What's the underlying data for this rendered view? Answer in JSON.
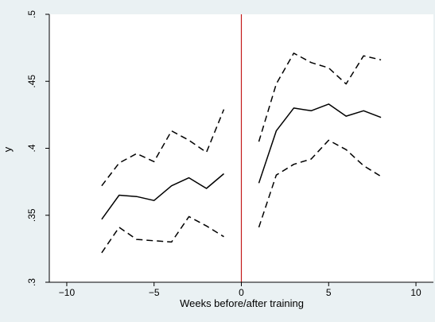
{
  "chart_data": {
    "type": "line",
    "title": "",
    "xlabel": "Weeks before/after training",
    "ylabel": "y",
    "xlim": [
      -11,
      11
    ],
    "ylim": [
      0.3,
      0.5
    ],
    "x_ticks": [
      -10,
      -5,
      0,
      5,
      10
    ],
    "x_tick_labels": [
      "−10",
      "−5",
      "0",
      "5",
      "10"
    ],
    "y_ticks": [
      0.3,
      0.35,
      0.4,
      0.45,
      0.5
    ],
    "y_tick_labels": [
      ".3",
      ".35",
      ".4",
      ".45",
      ".5"
    ],
    "grid": false,
    "legend": "none",
    "vertical_reference_line": {
      "x": 0,
      "color": "#c41a1a"
    },
    "segments": [
      {
        "x": [
          -8,
          -7,
          -6,
          -5,
          -4,
          -3,
          -2,
          -1
        ],
        "series": [
          {
            "style": "dashed",
            "values": [
              0.372,
              0.389,
              0.396,
              0.39,
              0.413,
              0.406,
              0.397,
              0.429
            ]
          },
          {
            "style": "solid",
            "values": [
              0.347,
              0.365,
              0.364,
              0.361,
              0.372,
              0.378,
              0.37,
              0.381
            ]
          },
          {
            "style": "dashed",
            "values": [
              0.322,
              0.341,
              0.332,
              0.331,
              0.33,
              0.349,
              0.342,
              0.334
            ]
          }
        ]
      },
      {
        "x": [
          1,
          2,
          3,
          4,
          5,
          6,
          7,
          8
        ],
        "series": [
          {
            "style": "dashed",
            "values": [
              0.405,
              0.448,
              0.471,
              0.464,
              0.46,
              0.448,
              0.469,
              0.466
            ]
          },
          {
            "style": "solid",
            "values": [
              0.374,
              0.413,
              0.43,
              0.428,
              0.433,
              0.424,
              0.428,
              0.423
            ]
          },
          {
            "style": "dashed",
            "values": [
              0.341,
              0.38,
              0.388,
              0.392,
              0.406,
              0.399,
              0.387,
              0.379
            ]
          }
        ]
      }
    ]
  }
}
